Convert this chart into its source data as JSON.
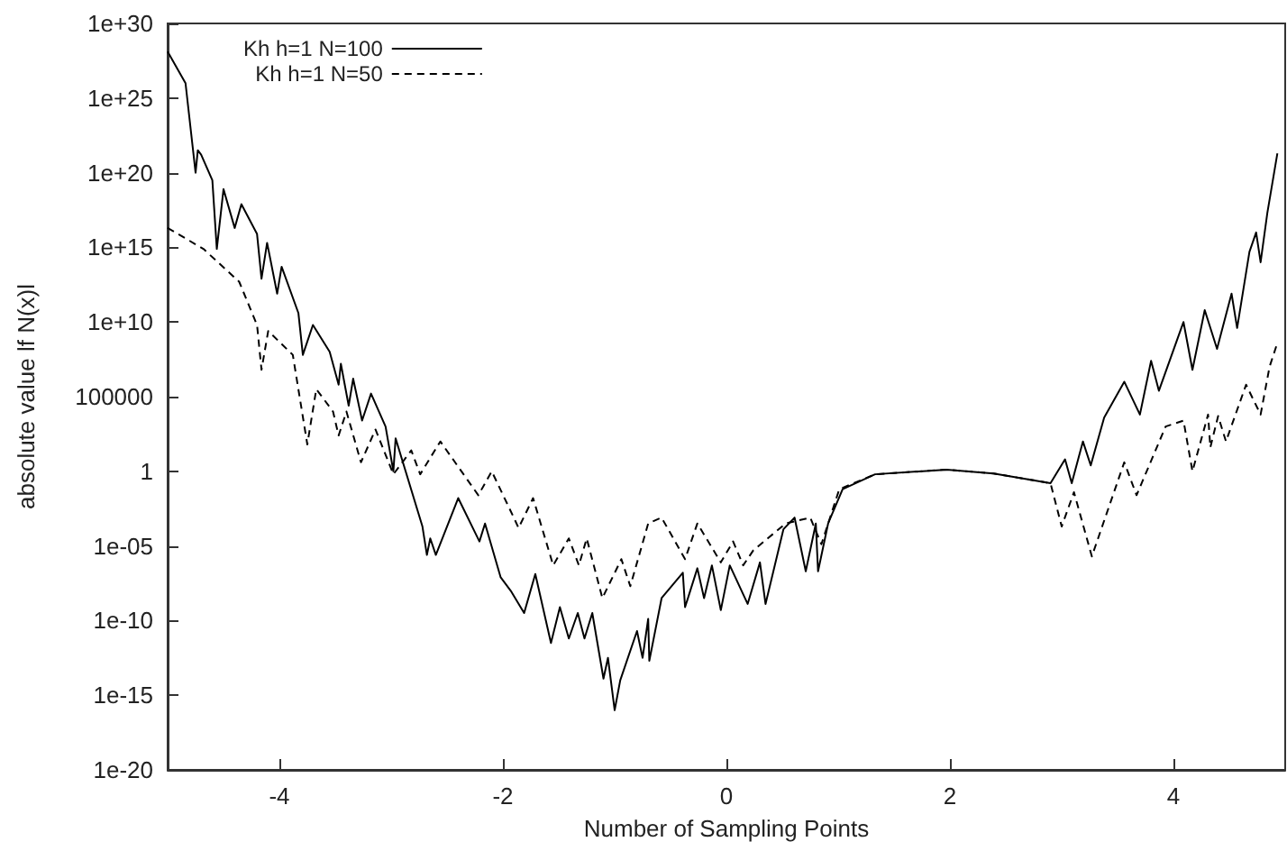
{
  "chart_data": {
    "type": "line",
    "xlabel": "Number of Sampling Points",
    "ylabel": "absolute value lf N(x)l",
    "log": "y",
    "grid": false,
    "legend": "top left",
    "marker": "none",
    "xlim": [
      -5,
      5
    ],
    "xticks": [
      -4,
      -2,
      0,
      2,
      4
    ],
    "ylim": [
      1e-20,
      1e+30
    ],
    "yticks": [
      {
        "value": 1e-20,
        "label": "1e-20"
      },
      {
        "value": 1e-15,
        "label": "1e-15"
      },
      {
        "value": 1e-10,
        "label": "1e-10"
      },
      {
        "value": 1e-05,
        "label": "1e-05"
      },
      {
        "value": 1,
        "label": "1"
      },
      {
        "value": 100000.0,
        "label": "100000"
      },
      {
        "value": 10000000000.0,
        "label": "1e+10"
      },
      {
        "value": 1000000000000000.0,
        "label": "1e+15"
      },
      {
        "value": 1e+20,
        "label": "1e+20"
      },
      {
        "value": 1e+25,
        "label": "1e+25"
      },
      {
        "value": 1e+30,
        "label": "1e+30"
      }
    ],
    "series": [
      {
        "name": "Kh h=1 N=100",
        "color": "#000000",
        "line_style": "solid",
        "x": [
          -5,
          -4.84,
          -4.75,
          -4.73,
          -4.7,
          -4.6,
          -4.56,
          -4.5,
          -4.4,
          -4.34,
          -4.2,
          -4.16,
          -4.11,
          -4.02,
          -3.98,
          -3.83,
          -3.79,
          -3.7,
          -3.55,
          -3.47,
          -3.45,
          -3.38,
          -3.34,
          -3.26,
          -3.18,
          -3.05,
          -2.98,
          -2.96,
          -2.72,
          -2.68,
          -2.65,
          -2.6,
          -2.4,
          -2.21,
          -2.16,
          -2.02,
          -1.93,
          -1.81,
          -1.71,
          -1.57,
          -1.49,
          -1.41,
          -1.33,
          -1.27,
          -1.2,
          -1.1,
          -1.06,
          -1,
          -0.95,
          -0.8,
          -0.75,
          -0.7,
          -0.69,
          -0.58,
          -0.39,
          -0.37,
          -0.26,
          -0.2,
          -0.13,
          -0.05,
          0.03,
          0.19,
          0.3,
          0.35,
          0.51,
          0.61,
          0.71,
          0.8,
          0.82,
          0.91,
          1.04,
          1.33,
          1.97,
          2.39,
          2.9,
          3.03,
          3.09,
          3.19,
          3.26,
          3.38,
          3.56,
          3.7,
          3.8,
          3.87,
          4.09,
          4.17,
          4.28,
          4.39,
          4.52,
          4.57,
          4.68,
          4.74,
          4.78,
          4.84,
          4.93
        ],
        "values": [
          1.3e+28,
          1e+26,
          1e+20,
          3.2e+21,
          1.6e+21,
          3.2e+19,
          790000000000000.0,
          7.9e+18,
          2e+16,
          7.9e+17,
          7900000000000000.0,
          7900000000000.0,
          2000000000000000.0,
          790000000000.0,
          50000000000000.0,
          40000000000.0,
          63000000.0,
          6300000000.0,
          100000000.0,
          630000.0,
          16000000.0,
          25000.0,
          1600000.0,
          2500.0,
          160000.0,
          1000.0,
          1,
          160,
          0.0002,
          2.5e-06,
          3.2e-05,
          2.5e-06,
          0.016,
          2e-05,
          0.00032,
          7.9e-08,
          1e-08,
          3.2e-10,
          1.3e-07,
          3.2e-12,
          7.9e-10,
          6.3e-12,
          3.2e-10,
          6.3e-12,
          3.2e-10,
          1.3e-14,
          3.2e-13,
          1e-16,
          1e-14,
          2e-11,
          3.2e-13,
          1.3e-10,
          2e-13,
          3.2e-09,
          1.6e-07,
          7.9e-10,
          3.2e-07,
          3.2e-09,
          5e-07,
          5e-10,
          5e-07,
          1.3e-09,
          7.9e-07,
          1.3e-09,
          0.00013,
          0.00079,
          2e-07,
          0.00032,
          2e-07,
          0.00032,
          0.063,
          0.63,
          1.3,
          0.71,
          0.16,
          6.3,
          0.16,
          100,
          2.5,
          4000.0,
          1000000.0,
          6300.0,
          25000000.0,
          250000.0,
          10000000000.0,
          6300000.0,
          63000000000.0,
          160000000.0,
          790000000000.0,
          4000000000.0,
          500000000000000.0,
          1e+16,
          100000000000000.0,
          2e+17,
          2e+21
        ]
      },
      {
        "name": "Kh h=1 N=50",
        "color": "#000000",
        "line_style": "dashed",
        "x": [
          -5,
          -4.68,
          -4.36,
          -4.2,
          -4.16,
          -4.1,
          -3.88,
          -3.75,
          -3.67,
          -3.52,
          -3.47,
          -3.4,
          -3.27,
          -3.14,
          -2.98,
          -2.82,
          -2.74,
          -2.56,
          -2.22,
          -2.1,
          -1.89,
          -1.86,
          -1.73,
          -1.55,
          -1.41,
          -1.32,
          -1.25,
          -1.11,
          -0.94,
          -0.86,
          -0.7,
          -0.58,
          -0.37,
          -0.26,
          -0.05,
          0.06,
          0.15,
          0.24,
          0.53,
          0.75,
          0.85,
          1.01,
          1.33,
          1.97,
          2.39,
          2.9,
          3,
          3.11,
          3.27,
          3.56,
          3.67,
          3.93,
          4.09,
          4.17,
          4.31,
          4.33,
          4.4,
          4.47,
          4.65,
          4.78,
          4.86,
          4.93
        ],
        "values": [
          2e+16,
          790000000000000.0,
          5000000000000.0,
          6300000000.0,
          6300000.0,
          2500000000.0,
          63000000.0,
          63,
          320000.0,
          10000.0,
          250,
          10000.0,
          4,
          630,
          0.63,
          25,
          0.63,
          100,
          0.025,
          1,
          0.0005,
          0.00016,
          0.016,
          5e-07,
          3.2e-05,
          5e-07,
          3.2e-05,
          3.2e-09,
          1.3e-06,
          2e-08,
          0.00032,
          0.00079,
          1.3e-06,
          0.00032,
          7.9e-07,
          2e-05,
          5e-07,
          5e-06,
          0.00032,
          0.00079,
          1.3e-05,
          0.063,
          0.63,
          1.3,
          0.71,
          0.16,
          0.0002,
          0.04,
          2e-06,
          4,
          0.025,
          1000,
          2500,
          1,
          6300,
          40,
          5000,
          100,
          630000.0,
          6300,
          10000000.0,
          400000000.0
        ]
      }
    ]
  }
}
